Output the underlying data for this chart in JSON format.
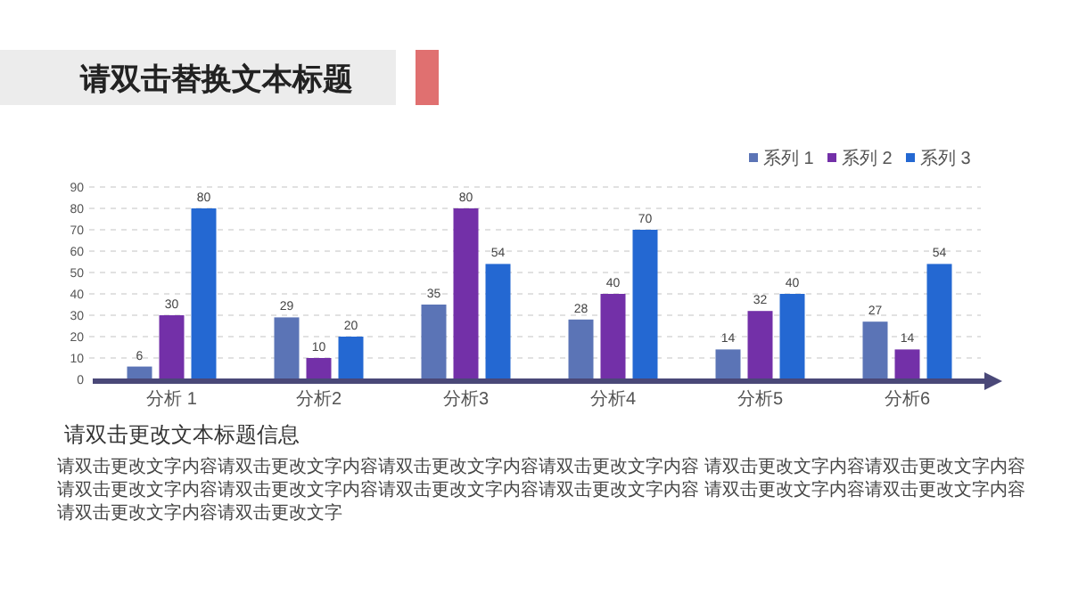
{
  "chart_data": {
    "type": "bar",
    "title": "请双击替换文本标题",
    "categories": [
      "分析 1",
      "分析2",
      "分析3",
      "分析4",
      "分析5",
      "分析6"
    ],
    "series": [
      {
        "name": "系列 1",
        "color": "#5b74b6",
        "values": [
          6,
          29,
          35,
          28,
          14,
          27
        ]
      },
      {
        "name": "系列 2",
        "color": "#7330a8",
        "values": [
          30,
          10,
          80,
          40,
          32,
          14
        ]
      },
      {
        "name": "系列 3",
        "color": "#2468d2",
        "values": [
          80,
          20,
          54,
          70,
          40,
          54
        ]
      }
    ],
    "ylim": [
      0,
      90
    ],
    "yticks": [
      0,
      10,
      20,
      30,
      40,
      50,
      60,
      70,
      80,
      90
    ],
    "grid": "y",
    "legend": "top right",
    "data_labels": true,
    "annotations": [
      "请双击更改文本标题信息",
      "请双击更改文字内容请双击更改文字内容请双击更改文字内容请双击更改文字内容 请双击更改文字内容请双击更改文字内容请双击更改文字内容请双击更改文字内容请双击更改文字内容请双击更改文字内容 请双击更改文字内容请双击更改文字内容请双击更改文字内容请双击更改文字"
    ]
  }
}
